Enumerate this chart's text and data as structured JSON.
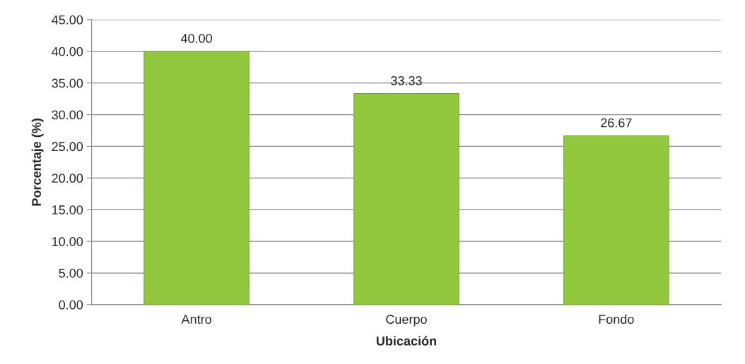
{
  "chart_data": {
    "type": "bar",
    "xlabel": "Ubicación",
    "ylabel": "Porcentaje (%)",
    "categories": [
      "Antro",
      "Cuerpo",
      "Fondo"
    ],
    "values": [
      40,
      33.33,
      26.67
    ],
    "color": "#92c83e",
    "value_labels": [
      "40.00",
      "33.33",
      "26.67"
    ],
    "ylim": [
      0,
      45
    ],
    "yticks": [
      {
        "value": 0,
        "label": "0.00"
      },
      {
        "value": 5,
        "label": "5.00"
      },
      {
        "value": 10,
        "label": "10.00"
      },
      {
        "value": 15,
        "label": "15.00"
      },
      {
        "value": 20,
        "label": "20.00"
      },
      {
        "value": 25,
        "label": "25.00"
      },
      {
        "value": 30,
        "label": "30.00"
      },
      {
        "value": 35,
        "label": "35.00"
      },
      {
        "value": 40,
        "label": "40.00"
      },
      {
        "value": 45,
        "label": "45.00"
      }
    ],
    "grid": "y",
    "legend": false
  }
}
